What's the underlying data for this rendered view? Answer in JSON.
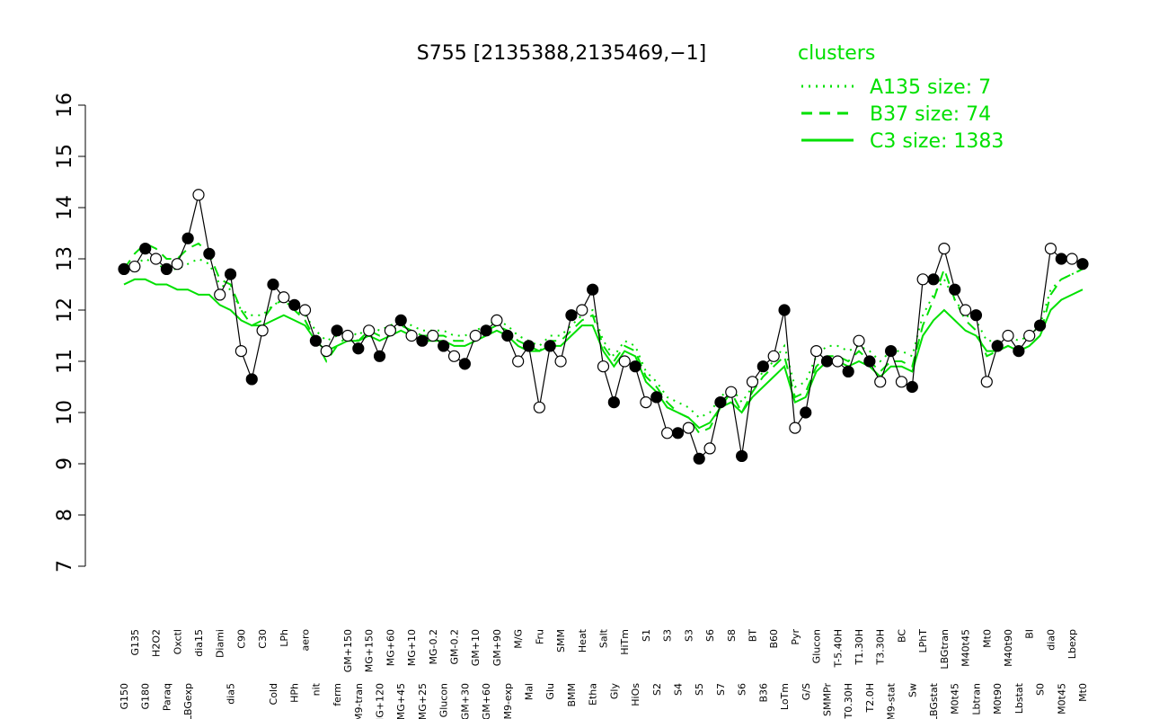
{
  "chart_data": {
    "type": "line",
    "title": "S755 [2135388,2135469,−1]",
    "legend_title": "clusters",
    "categories": [
      "G150",
      "G135",
      "G180",
      "H2O2",
      "Paraq",
      "Oxctl",
      "LBGexp",
      "dia15",
      null,
      "Diami",
      "dia5",
      "C90",
      null,
      "C30",
      "Cold",
      "LPh",
      "HPh",
      "aero",
      "nit",
      null,
      "ferm",
      "GM+150",
      "M9-tran",
      "MG+150",
      "MG+120",
      "MG+60",
      "MG+45",
      "MG+10",
      "MG+25",
      "MG-0.2",
      "Glucon",
      "GM-0.2",
      "GM+30",
      "GM+10",
      "GM+60",
      "GM+90",
      "M9-exp",
      "M/G",
      "Mal",
      "Fru",
      "Glu",
      "SMM",
      "BMM",
      "Heat",
      "Etha",
      "Salt",
      "Gly",
      "HiTm",
      "HiOs",
      "S1",
      "S2",
      "S3",
      "S4",
      "S3",
      "S5",
      "S6",
      "S7",
      "S8",
      "S6",
      "BT",
      "B36",
      "B60",
      "LoTm",
      "Pyr",
      "G/S",
      "Glucon",
      "SMMPr",
      "T-5.40H",
      "T0.30H",
      "T1.30H",
      "T2.0H",
      "T3.30H",
      "M9-stat",
      "BC",
      "Sw",
      "LPhT",
      "LBGstat",
      "LBGtran",
      "M0t45",
      "M40t45",
      "Lbtran",
      "Mt0",
      "M0t90",
      "M40t90",
      "Lbstat",
      "BI",
      "S0",
      "dia0",
      "M0t45",
      "Lbexp",
      "Mt0"
    ],
    "values": [
      12.8,
      12.85,
      13.2,
      13.0,
      12.8,
      12.9,
      13.4,
      14.25,
      13.1,
      12.3,
      12.7,
      11.2,
      10.65,
      11.6,
      12.5,
      12.25,
      12.1,
      12.0,
      11.4,
      11.2,
      11.6,
      11.5,
      11.25,
      11.6,
      11.1,
      11.6,
      11.8,
      11.5,
      11.4,
      11.5,
      11.3,
      11.1,
      10.95,
      11.5,
      11.6,
      11.8,
      11.5,
      11.0,
      11.3,
      10.1,
      11.3,
      11.0,
      11.9,
      12.0,
      12.4,
      10.9,
      10.2,
      11.0,
      10.9,
      10.2,
      10.3,
      9.6,
      9.6,
      9.7,
      9.1,
      9.3,
      10.2,
      10.4,
      9.15,
      10.6,
      10.9,
      11.1,
      12.0,
      9.7,
      10.0,
      11.2,
      11.0,
      11.0,
      10.8,
      11.4,
      11.0,
      10.6,
      11.2,
      10.6,
      10.5,
      12.6,
      12.6,
      13.2,
      12.4,
      12.0,
      11.9,
      10.6,
      11.3,
      11.5,
      11.2,
      11.5,
      11.7,
      13.2,
      13.0,
      13.0,
      12.9
    ],
    "color": "#000000",
    "series": [
      {
        "name": "A135 size: 7",
        "color": "#00e000",
        "dash": "dotted",
        "values": [
          12.7,
          12.9,
          13.0,
          12.9,
          12.8,
          12.8,
          12.9,
          13.0,
          12.9,
          12.5,
          12.4,
          12.0,
          11.9,
          11.9,
          12.1,
          12.2,
          12.0,
          11.9,
          11.6,
          11.4,
          11.5,
          11.6,
          11.5,
          11.7,
          11.6,
          11.7,
          11.8,
          11.7,
          11.6,
          11.6,
          11.6,
          11.5,
          11.5,
          11.6,
          11.7,
          11.8,
          11.7,
          11.5,
          11.4,
          11.3,
          11.5,
          11.5,
          11.7,
          11.9,
          12.0,
          11.4,
          11.1,
          11.4,
          11.3,
          10.8,
          10.6,
          10.3,
          10.2,
          10.1,
          9.9,
          10.0,
          10.3,
          10.5,
          10.2,
          10.5,
          10.8,
          11.0,
          11.3,
          10.5,
          10.6,
          11.1,
          11.3,
          11.3,
          11.2,
          11.3,
          11.2,
          11.0,
          11.2,
          11.2,
          11.1,
          11.9,
          12.3,
          12.6,
          12.2,
          11.9,
          11.8,
          11.4,
          11.4,
          11.5,
          11.4,
          11.5,
          11.7,
          12.4,
          12.6,
          12.7,
          12.8
        ]
      },
      {
        "name": "B37 size: 74",
        "color": "#00e000",
        "dash": "dashed",
        "values": [
          12.8,
          13.1,
          13.3,
          13.2,
          13.0,
          13.0,
          13.2,
          13.3,
          13.1,
          12.6,
          12.5,
          12.0,
          11.7,
          11.8,
          12.1,
          12.2,
          12.0,
          11.8,
          11.4,
          11.0,
          11.3,
          11.5,
          11.4,
          11.6,
          11.5,
          11.6,
          11.7,
          11.6,
          11.5,
          11.5,
          11.5,
          11.4,
          11.4,
          11.5,
          11.6,
          11.7,
          11.6,
          11.4,
          11.3,
          11.2,
          11.4,
          11.4,
          11.6,
          11.8,
          11.9,
          11.3,
          11.0,
          11.3,
          11.2,
          10.7,
          10.5,
          10.2,
          10.0,
          9.9,
          9.6,
          9.7,
          10.1,
          10.4,
          10.0,
          10.4,
          10.7,
          10.9,
          11.1,
          10.3,
          10.4,
          10.9,
          11.1,
          11.1,
          11.0,
          11.2,
          11.0,
          10.8,
          11.0,
          11.0,
          10.9,
          11.7,
          12.2,
          12.8,
          12.2,
          11.8,
          11.6,
          11.1,
          11.2,
          11.3,
          11.2,
          11.3,
          11.5,
          12.3,
          12.6,
          12.7,
          12.8
        ]
      },
      {
        "name": "C3 size: 1383",
        "color": "#00e000",
        "dash": "solid",
        "values": [
          12.5,
          12.6,
          12.6,
          12.5,
          12.5,
          12.4,
          12.4,
          12.3,
          12.3,
          12.1,
          12.0,
          11.8,
          11.7,
          11.7,
          11.8,
          11.9,
          11.8,
          11.7,
          11.4,
          11.2,
          11.3,
          11.4,
          11.4,
          11.5,
          11.4,
          11.5,
          11.6,
          11.5,
          11.4,
          11.4,
          11.4,
          11.3,
          11.3,
          11.4,
          11.5,
          11.6,
          11.5,
          11.3,
          11.2,
          11.2,
          11.3,
          11.3,
          11.5,
          11.7,
          11.7,
          11.2,
          10.9,
          11.2,
          11.1,
          10.6,
          10.4,
          10.1,
          10.0,
          9.9,
          9.7,
          9.8,
          10.1,
          10.2,
          10.0,
          10.3,
          10.5,
          10.7,
          10.9,
          10.2,
          10.3,
          10.8,
          11.0,
          11.0,
          10.9,
          11.0,
          10.9,
          10.7,
          10.9,
          10.9,
          10.8,
          11.5,
          11.8,
          12.0,
          11.8,
          11.6,
          11.5,
          11.2,
          11.2,
          11.3,
          11.2,
          11.3,
          11.5,
          12.0,
          12.2,
          12.3,
          12.4
        ]
      }
    ],
    "ylim": [
      7,
      16
    ],
    "yticks": [
      7,
      8,
      9,
      10,
      11,
      12,
      13,
      14,
      15,
      16
    ],
    "grid": false
  }
}
